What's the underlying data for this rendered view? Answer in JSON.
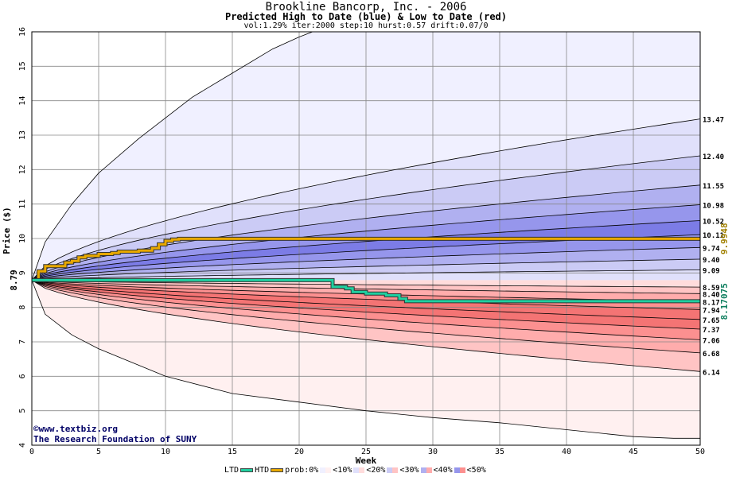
{
  "title": "Brookline Bancorp, Inc. - 2006",
  "subtitle": "Predicted High to Date (blue) &  Low to Date (red)",
  "params": "vol:1.29% iter:2000 step:10 hurst:0.57 drift:0.07/0",
  "credit": {
    "line1": "www.textbiz.org",
    "line2": "The Research Foundation of SUNY",
    "icon": "copyright-icon"
  },
  "colors": {
    "htd": "#e8a800",
    "ltd": "#1fd0a0",
    "blue_bands": [
      "#f0f0ff",
      "#e0e0fb",
      "#cbcbf5",
      "#b0b0f0",
      "#9696ec",
      "#7c7ce6"
    ],
    "red_bands": [
      "#fff0f0",
      "#ffdcdc",
      "#ffc4c4",
      "#ffacac",
      "#fc9090",
      "#f47474"
    ]
  },
  "legend": {
    "ltd": "LTD",
    "htd": "HTD",
    "items": [
      "prob:0%",
      "<10%",
      "<20%",
      "<30%",
      "<40%",
      "<50%"
    ]
  },
  "chart_data": {
    "type": "area",
    "xlabel": "Week",
    "ylabel": "Price ($)",
    "xlim": [
      0,
      50
    ],
    "ylim": [
      4,
      16
    ],
    "xticks": [
      0,
      5,
      10,
      15,
      20,
      25,
      30,
      35,
      40,
      45,
      50
    ],
    "yticks": [
      4,
      5,
      6,
      7,
      8,
      9,
      10,
      11,
      12,
      13,
      14,
      15,
      16
    ],
    "grid": true,
    "start_value": 8.79,
    "upper_quantile_end_values": [
      13.47,
      12.4,
      11.55,
      10.98,
      10.52,
      10.11,
      9.74,
      9.4,
      9.09
    ],
    "lower_quantile_end_values": [
      8.59,
      8.4,
      8.17,
      7.94,
      7.65,
      7.37,
      7.06,
      6.68,
      6.14
    ],
    "upper_envelope": {
      "x": [
        0,
        1,
        3,
        5,
        8,
        10,
        12,
        15,
        18,
        20,
        21,
        50
      ],
      "y": [
        8.79,
        9.9,
        11.0,
        11.9,
        12.9,
        13.5,
        14.1,
        14.8,
        15.5,
        15.85,
        16.0,
        16.0
      ]
    },
    "lower_envelope": {
      "x": [
        0,
        1,
        3,
        5,
        10,
        15,
        20,
        25,
        30,
        35,
        40,
        45,
        48,
        50
      ],
      "y": [
        8.79,
        7.8,
        7.2,
        6.8,
        6.0,
        5.5,
        5.25,
        5.0,
        4.8,
        4.65,
        4.45,
        4.25,
        4.2,
        4.2
      ]
    },
    "htd_line": {
      "name": "HTD",
      "end_value": 9.9948,
      "x": [
        0,
        0.5,
        1,
        1.5,
        2.5,
        3,
        3.5,
        4,
        5,
        6,
        6.5,
        8,
        9,
        9.5,
        10,
        10.5,
        11,
        50
      ],
      "y": [
        8.79,
        9.05,
        9.2,
        9.2,
        9.3,
        9.35,
        9.45,
        9.5,
        9.55,
        9.58,
        9.62,
        9.65,
        9.72,
        9.83,
        9.93,
        9.97,
        9.99,
        9.9948
      ]
    },
    "ltd_line": {
      "name": "LTD",
      "end_value": 8.17075,
      "x": [
        0,
        5,
        10,
        15,
        20,
        22,
        22.5,
        23.5,
        24,
        25,
        26.5,
        27.5,
        28,
        50
      ],
      "y": [
        8.79,
        8.79,
        8.79,
        8.79,
        8.79,
        8.79,
        8.6,
        8.55,
        8.45,
        8.4,
        8.35,
        8.25,
        8.18,
        8.17075
      ]
    },
    "left_marker": "8.79",
    "htd_marker": "9.9948",
    "ltd_marker": "8.17075"
  }
}
